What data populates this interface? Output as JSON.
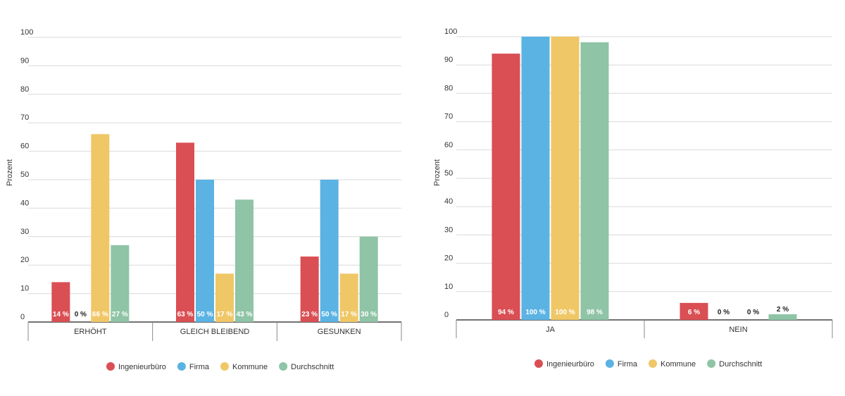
{
  "chart_data": [
    {
      "type": "bar",
      "title": "",
      "xlabel": "",
      "ylabel": "Prozent",
      "ylim": [
        0,
        100
      ],
      "yticks": [
        0,
        10,
        20,
        30,
        40,
        50,
        60,
        70,
        80,
        90,
        100
      ],
      "grid": true,
      "legend_position": "bottom",
      "value_suffix": " %",
      "categories": [
        "ERHÖHT",
        "GLEICH BLEIBEND",
        "GESUNKEN"
      ],
      "series": [
        {
          "name": "Ingenieurbüro",
          "color": "#d94f54",
          "values": [
            14,
            63,
            23
          ]
        },
        {
          "name": "Firma",
          "color": "#5bb3e3",
          "values": [
            0,
            50,
            50
          ]
        },
        {
          "name": "Kommune",
          "color": "#f0c767",
          "values": [
            66,
            17,
            17
          ]
        },
        {
          "name": "Durchschnitt",
          "color": "#8fc4a6",
          "values": [
            27,
            43,
            30
          ]
        }
      ]
    },
    {
      "type": "bar",
      "title": "",
      "xlabel": "",
      "ylabel": "Prozent",
      "ylim": [
        0,
        100
      ],
      "yticks": [
        0,
        10,
        20,
        30,
        40,
        50,
        60,
        70,
        80,
        90,
        100
      ],
      "grid": true,
      "legend_position": "bottom",
      "value_suffix": " %",
      "categories": [
        "JA",
        "NEIN"
      ],
      "series": [
        {
          "name": "Ingenieurbüro",
          "color": "#d94f54",
          "values": [
            94,
            6
          ]
        },
        {
          "name": "Firma",
          "color": "#5bb3e3",
          "values": [
            100,
            0
          ]
        },
        {
          "name": "Kommune",
          "color": "#f0c767",
          "values": [
            100,
            0
          ]
        },
        {
          "name": "Durchschnitt",
          "color": "#8fc4a6",
          "values": [
            98,
            2
          ]
        }
      ]
    }
  ]
}
